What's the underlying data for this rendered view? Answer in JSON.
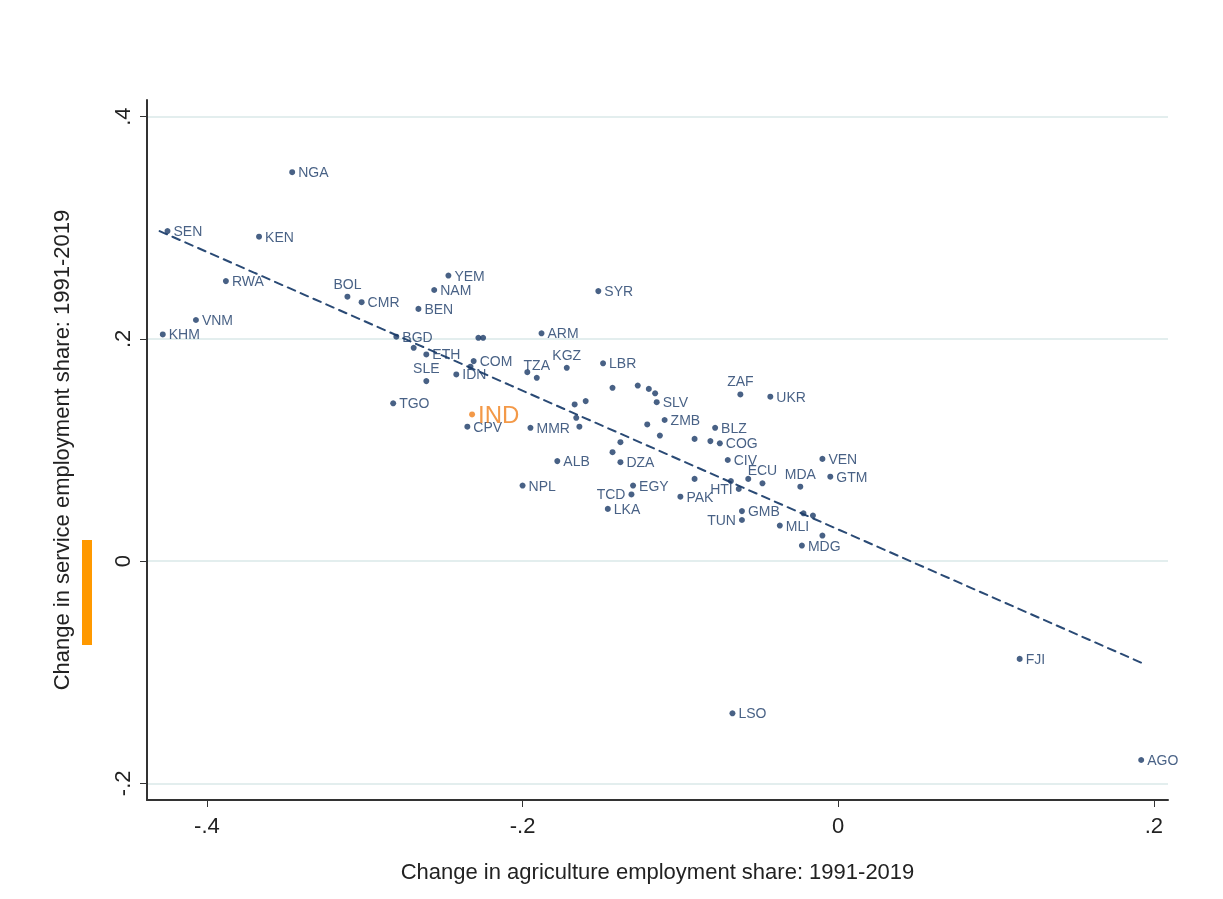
{
  "chart_data": {
    "type": "scatter",
    "xlabel": "Change in agriculture employment share: 1991-2019",
    "ylabel": "Change in service employment share: 1991-2019",
    "xlim": [
      -0.438,
      0.209
    ],
    "ylim": [
      -0.215,
      0.415
    ],
    "xticks": [
      {
        "value": -0.4,
        "label": "-.4"
      },
      {
        "value": -0.2,
        "label": "-.2"
      },
      {
        "value": 0,
        "label": "0"
      },
      {
        "value": 0.2,
        "label": ".2"
      }
    ],
    "yticks": [
      {
        "value": -0.2,
        "label": "-.2"
      },
      {
        "value": 0,
        "label": "0"
      },
      {
        "value": 0.2,
        "label": ".2"
      },
      {
        "value": 0.4,
        "label": ".4"
      }
    ],
    "grid": "y",
    "marker": "circle",
    "series": [
      {
        "color": "#1a3a66",
        "x": [
          -0.346,
          -0.425,
          -0.367,
          -0.388,
          -0.407,
          -0.428,
          -0.311,
          -0.302,
          -0.266,
          -0.247,
          -0.256,
          -0.152,
          -0.28,
          -0.269,
          -0.261,
          -0.261,
          -0.282,
          -0.242,
          -0.231,
          -0.228,
          -0.225,
          -0.233,
          -0.188,
          -0.197,
          -0.172,
          -0.191,
          -0.149,
          -0.235,
          -0.195,
          -0.178,
          -0.2,
          -0.146,
          -0.13,
          -0.131,
          -0.1,
          -0.138,
          -0.138,
          -0.143,
          -0.143,
          -0.127,
          -0.12,
          -0.115,
          -0.116,
          -0.167,
          -0.16,
          -0.166,
          -0.164,
          -0.11,
          -0.121,
          -0.113,
          -0.091,
          -0.081,
          -0.078,
          -0.075,
          -0.07,
          -0.062,
          -0.043,
          -0.01,
          -0.005,
          -0.024,
          -0.048,
          -0.091,
          -0.063,
          -0.057,
          -0.068,
          -0.061,
          -0.061,
          -0.037,
          -0.022,
          -0.016,
          -0.01,
          -0.023,
          0.115,
          -0.067,
          0.192
        ],
        "values": [
          0.35,
          0.297,
          0.292,
          0.252,
          0.217,
          0.204,
          0.238,
          0.233,
          0.227,
          0.257,
          0.244,
          0.243,
          0.202,
          0.192,
          0.186,
          0.162,
          0.142,
          0.168,
          0.18,
          0.201,
          0.201,
          0.175,
          0.205,
          0.17,
          0.174,
          0.165,
          0.178,
          0.121,
          0.12,
          0.09,
          0.068,
          0.047,
          0.068,
          0.06,
          0.058,
          0.089,
          0.107,
          0.098,
          0.156,
          0.158,
          0.155,
          0.143,
          0.151,
          0.141,
          0.144,
          0.129,
          0.121,
          0.127,
          0.123,
          0.113,
          0.11,
          0.108,
          0.12,
          0.106,
          0.091,
          0.15,
          0.148,
          0.092,
          0.076,
          0.067,
          0.07,
          0.074,
          0.065,
          0.074,
          0.072,
          0.045,
          0.037,
          0.032,
          0.043,
          0.041,
          0.023,
          0.014,
          -0.088,
          -0.137,
          -0.179
        ],
        "value_labels": [
          "NGA",
          "SEN",
          "KEN",
          "RWA",
          "VNM",
          "KHM",
          "BOL",
          "CMR",
          "BEN",
          "YEM",
          "NAM",
          "SYR",
          "BGD",
          null,
          "ETH",
          "SLE",
          "TGO",
          "IDN",
          "COM",
          null,
          null,
          null,
          "ARM",
          null,
          "KGZ",
          "TZA",
          "LBR",
          "CPV",
          "MMR",
          "ALB",
          "NPL",
          "LKA",
          "EGY",
          "TCD",
          "PAK",
          "DZA",
          null,
          null,
          null,
          null,
          null,
          "SLV",
          null,
          null,
          null,
          null,
          null,
          "ZMB",
          null,
          null,
          null,
          null,
          "BLZ",
          "COG",
          "CIV",
          "ZAF",
          "UKR",
          "VEN",
          "GTM",
          "MDA",
          "ECU",
          null,
          "HTI",
          null,
          null,
          "GMB",
          "TUN",
          "MLI",
          null,
          null,
          null,
          "MDG",
          "FJI",
          "LSO",
          "AGO"
        ]
      },
      {
        "color": "#f07f1a",
        "x": [
          -0.232
        ],
        "values": [
          0.132
        ],
        "value_labels": [
          "IND"
        ]
      },
      {
        "type": "line",
        "color": "#2a4a75",
        "line_style": "dashed",
        "marker": "none",
        "x": [
          -0.43,
          0.193
        ],
        "values": [
          0.297,
          -0.092
        ]
      }
    ]
  }
}
